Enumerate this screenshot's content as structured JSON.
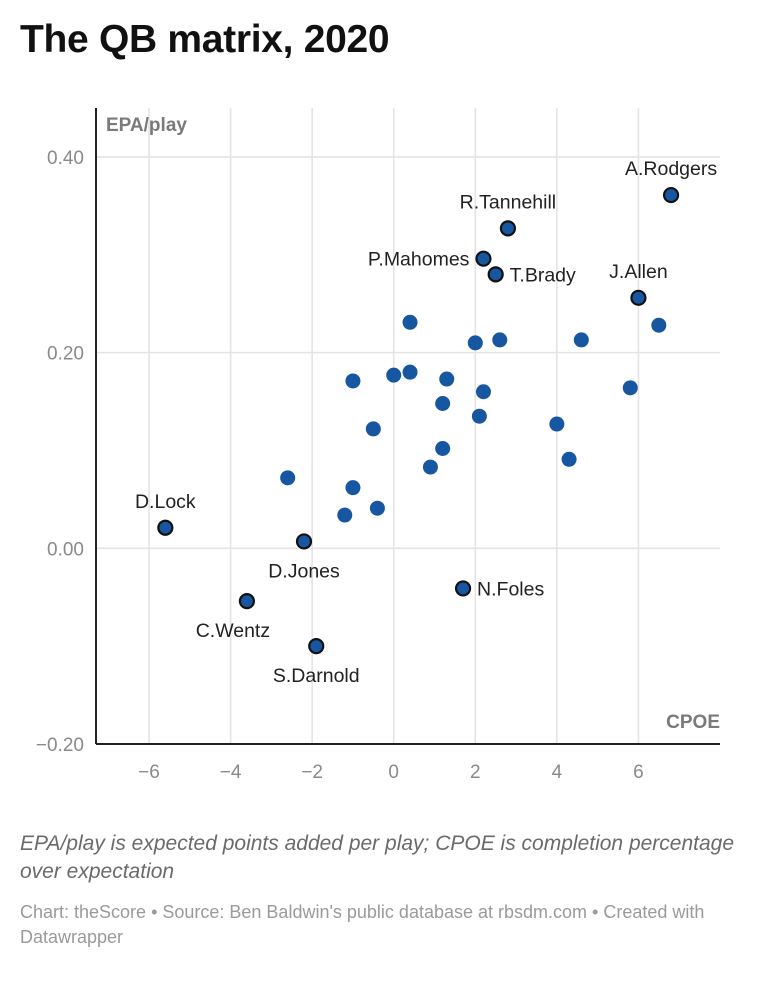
{
  "title": "The QB matrix, 2020",
  "notes": "EPA/play is expected points added per play; CPOE is completion percentage over expectation",
  "footer": "Chart: theScore • Source: Ben Baldwin's public database at rbsdm.com • Created with Datawrapper",
  "colors": {
    "dot": "#1756a0",
    "outline": "#111111"
  },
  "chart_data": {
    "type": "scatter",
    "xlabel": "CPOE",
    "ylabel": "EPA/play",
    "xlim": [
      -7.3,
      8
    ],
    "ylim": [
      -0.2,
      0.45
    ],
    "x_ticks": [
      -6,
      -4,
      -2,
      0,
      2,
      4,
      6
    ],
    "x_tick_labels": [
      "−6",
      "−4",
      "−2",
      "0",
      "2",
      "4",
      "6"
    ],
    "y_ticks": [
      -0.2,
      0,
      0.2,
      0.4
    ],
    "y_tick_labels": [
      "−0.20",
      "0.00",
      "0.20",
      "0.40"
    ],
    "grid": true,
    "points": [
      {
        "x": 6.8,
        "y": 0.361,
        "label": "A.Rodgers",
        "anchor": "top"
      },
      {
        "x": 2.8,
        "y": 0.327,
        "label": "R.Tannehill",
        "anchor": "top"
      },
      {
        "x": 2.2,
        "y": 0.296,
        "label": "P.Mahomes",
        "anchor": "left"
      },
      {
        "x": 2.5,
        "y": 0.28,
        "label": "T.Brady",
        "anchor": "right"
      },
      {
        "x": 6.0,
        "y": 0.256,
        "label": "J.Allen",
        "anchor": "top"
      },
      {
        "x": 0.4,
        "y": 0.231
      },
      {
        "x": 6.5,
        "y": 0.228
      },
      {
        "x": 2.6,
        "y": 0.213
      },
      {
        "x": 4.6,
        "y": 0.213
      },
      {
        "x": 2.0,
        "y": 0.21
      },
      {
        "x": 0.4,
        "y": 0.18
      },
      {
        "x": 0.0,
        "y": 0.177
      },
      {
        "x": 1.3,
        "y": 0.173
      },
      {
        "x": -1.0,
        "y": 0.171
      },
      {
        "x": 5.8,
        "y": 0.164
      },
      {
        "x": 2.2,
        "y": 0.16
      },
      {
        "x": 1.2,
        "y": 0.148
      },
      {
        "x": 2.1,
        "y": 0.135
      },
      {
        "x": 4.0,
        "y": 0.127
      },
      {
        "x": -0.5,
        "y": 0.122
      },
      {
        "x": 1.2,
        "y": 0.102
      },
      {
        "x": 4.3,
        "y": 0.091
      },
      {
        "x": 0.9,
        "y": 0.083
      },
      {
        "x": -2.6,
        "y": 0.072
      },
      {
        "x": -1.0,
        "y": 0.062
      },
      {
        "x": -0.4,
        "y": 0.041
      },
      {
        "x": -1.2,
        "y": 0.034
      },
      {
        "x": -5.6,
        "y": 0.021,
        "label": "D.Lock",
        "anchor": "top"
      },
      {
        "x": -2.2,
        "y": 0.007,
        "label": "D.Jones",
        "anchor": "bottom"
      },
      {
        "x": 1.7,
        "y": -0.041,
        "label": "N.Foles",
        "anchor": "right"
      },
      {
        "x": -3.6,
        "y": -0.054,
        "label": "C.Wentz",
        "anchor": "bottom-left"
      },
      {
        "x": -1.9,
        "y": -0.1,
        "label": "S.Darnold",
        "anchor": "bottom"
      }
    ]
  }
}
